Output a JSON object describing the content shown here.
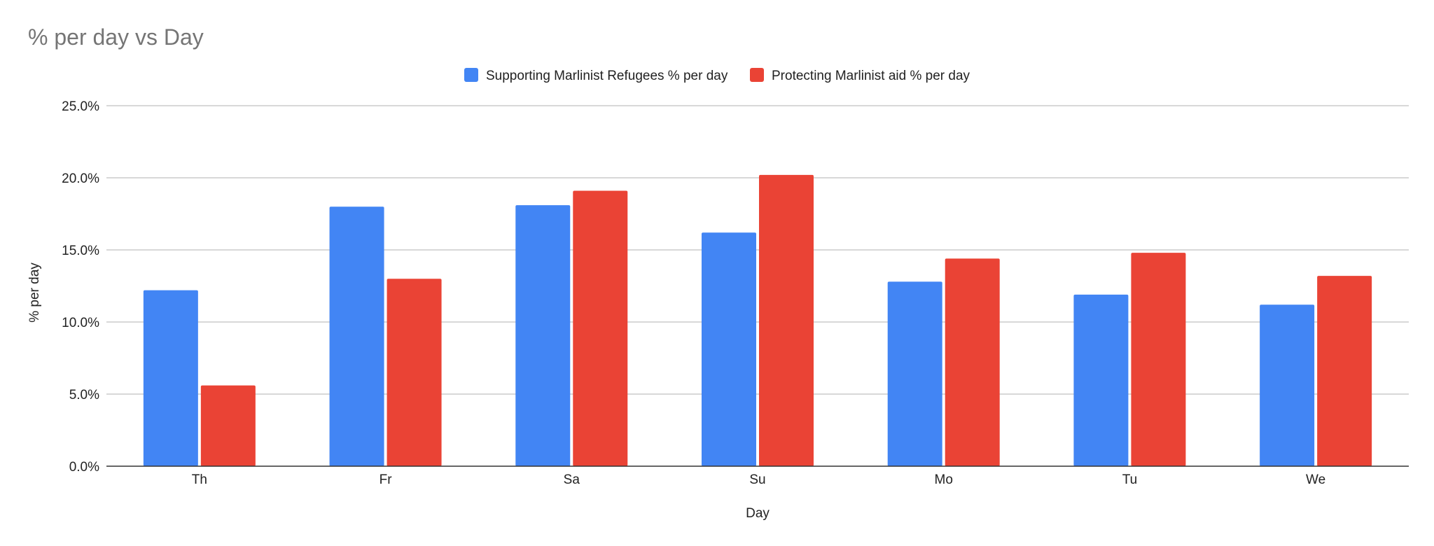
{
  "chart_data": {
    "type": "bar",
    "title": "% per day vs Day",
    "xlabel": "Day",
    "ylabel": "% per day",
    "categories": [
      "Th",
      "Fr",
      "Sa",
      "Su",
      "Mo",
      "Tu",
      "We"
    ],
    "series": [
      {
        "name": "Supporting Marlinist Refugees % per day",
        "color": "#4285F4",
        "values": [
          12.2,
          18.0,
          18.1,
          16.2,
          12.8,
          11.9,
          11.2
        ]
      },
      {
        "name": "Protecting Marlinist aid % per day",
        "color": "#EA4335",
        "values": [
          5.6,
          13.0,
          19.1,
          20.2,
          14.4,
          14.8,
          13.2
        ]
      }
    ],
    "ylim": [
      0,
      25
    ],
    "yticks": [
      "0.0%",
      "5.0%",
      "10.0%",
      "15.0%",
      "20.0%",
      "25.0%"
    ],
    "ytick_values": [
      0,
      5,
      10,
      15,
      20,
      25
    ],
    "grid": true,
    "legend_position": "top-center"
  }
}
